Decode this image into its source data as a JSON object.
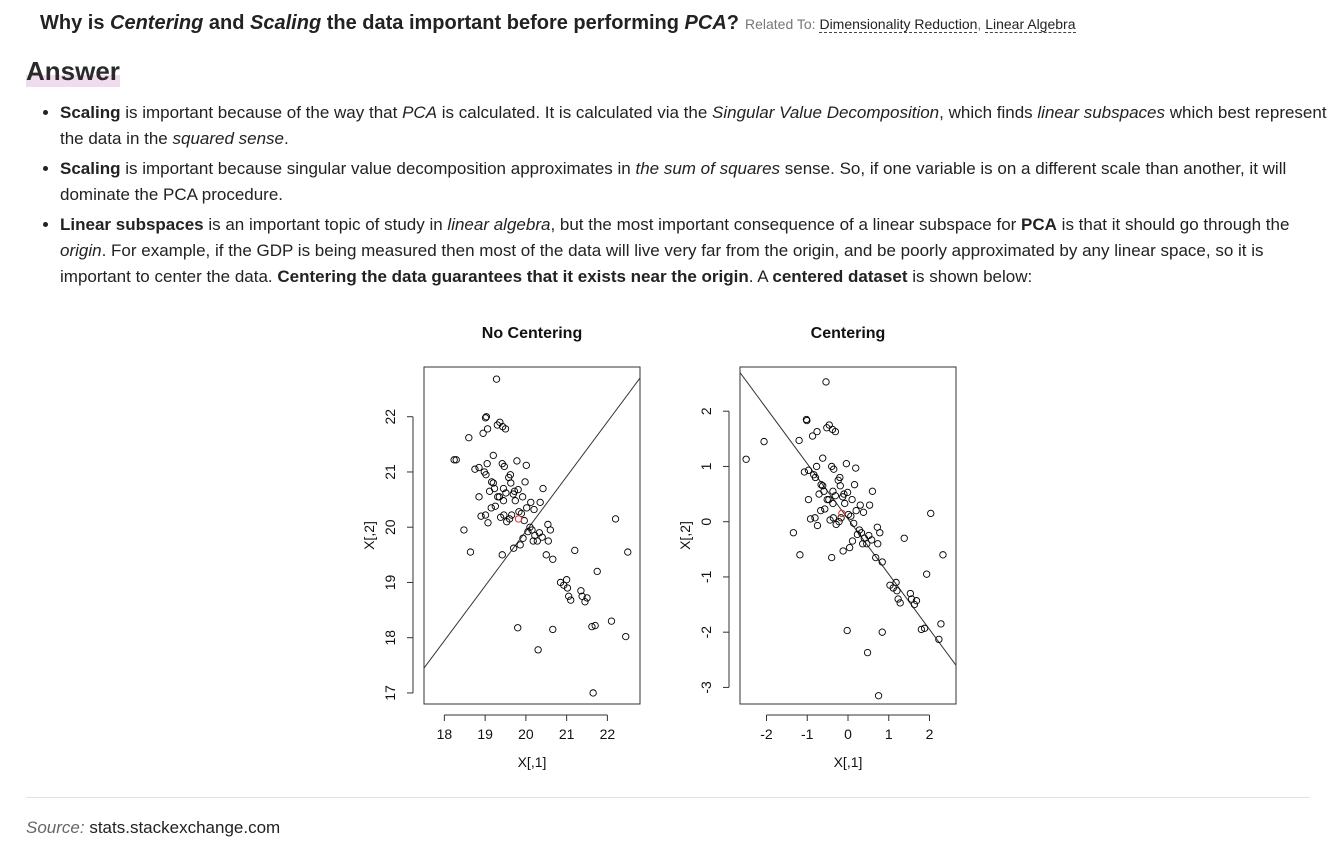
{
  "question": {
    "p1": "Why is ",
    "term1": "Centering",
    "p2": " and ",
    "term2": "Scaling",
    "p3": " the data important before performing ",
    "term3": "PCA",
    "p4": "?",
    "related_label": "Related To:",
    "related_links": [
      "Dimensionality Reduction",
      "Linear Algebra"
    ],
    "related_sep": ","
  },
  "answer": {
    "heading": "Answer",
    "bullets": [
      {
        "segments": [
          {
            "t": "Scaling",
            "s": "b"
          },
          {
            "t": " is important because of the way that ",
            "s": ""
          },
          {
            "t": "PCA",
            "s": "i"
          },
          {
            "t": " is calculated. It is calculated via the ",
            "s": ""
          },
          {
            "t": "Singular Value Decomposition",
            "s": "i"
          },
          {
            "t": ", which finds ",
            "s": ""
          },
          {
            "t": "linear subspaces",
            "s": "i"
          },
          {
            "t": " which best represent the data in the ",
            "s": ""
          },
          {
            "t": "squared sense",
            "s": "i"
          },
          {
            "t": ".",
            "s": ""
          }
        ]
      },
      {
        "segments": [
          {
            "t": "Scaling",
            "s": "b"
          },
          {
            "t": " is important because singular value decomposition approximates in ",
            "s": ""
          },
          {
            "t": "the sum of squares",
            "s": "i"
          },
          {
            "t": " sense. So, if one variable is on a different scale than another, it will dominate the PCA procedure.",
            "s": ""
          }
        ]
      },
      {
        "segments": [
          {
            "t": "Linear subspaces",
            "s": "b"
          },
          {
            "t": " is an important topic of study in ",
            "s": ""
          },
          {
            "t": "linear algebra",
            "s": "i"
          },
          {
            "t": ", but the most important consequence of a linear subspace for ",
            "s": ""
          },
          {
            "t": "PCA",
            "s": "b"
          },
          {
            "t": " is that it should go through the ",
            "s": ""
          },
          {
            "t": "origin",
            "s": "i"
          },
          {
            "t": ". For example, if the GDP is being measured then most of the data will live very far from the origin, and be poorly approximated by any linear space, so it is important to center the data. ",
            "s": ""
          },
          {
            "t": "Centering the data guarantees that it exists near the origin",
            "s": "b"
          },
          {
            "t": ". A ",
            "s": ""
          },
          {
            "t": "centered dataset",
            "s": "b"
          },
          {
            "t": " is shown below:",
            "s": ""
          }
        ]
      }
    ]
  },
  "chart_data": [
    {
      "type": "scatter",
      "title": "No Centering",
      "xlabel": "X[,1]",
      "ylabel": "X[,2]",
      "xlim": [
        17.5,
        22.8
      ],
      "ylim": [
        16.8,
        22.9
      ],
      "xticks": [
        18,
        19,
        20,
        21,
        22
      ],
      "yticks": [
        17,
        18,
        19,
        20,
        21,
        22
      ],
      "grid": false,
      "legend": "none",
      "point_color": "#000000",
      "mean_color": "#e03030",
      "line": {
        "x1": 17.5,
        "y1": 17.45,
        "x2": 22.8,
        "y2": 22.7
      },
      "mean_point": {
        "x": 19.82,
        "y": 20.15
      },
      "x": [
        19.28,
        18.24,
        18.29,
        19.01,
        19.03,
        19.3,
        19.36,
        19.43,
        19.5,
        18.95,
        18.6,
        19.06,
        19.2,
        19.47,
        19.42,
        19.62,
        19.78,
        20.01,
        18.75,
        18.85,
        18.98,
        19.02,
        19.05,
        19.11,
        19.16,
        19.23,
        19.35,
        19.45,
        19.51,
        19.58,
        19.63,
        19.69,
        19.72,
        19.81,
        19.92,
        19.98,
        20.12,
        20.2,
        20.35,
        20.42,
        18.9,
        19.01,
        19.07,
        19.15,
        19.25,
        19.31,
        19.38,
        19.46,
        19.53,
        19.6,
        19.65,
        19.74,
        19.83,
        19.89,
        19.96,
        20.02,
        20.1,
        20.15,
        20.22,
        20.28,
        20.33,
        20.4,
        20.54,
        20.6,
        19.45,
        19.2,
        18.85,
        18.48,
        18.64,
        19.42,
        19.7,
        19.86,
        19.93,
        20.05,
        20.18,
        20.5,
        20.55,
        20.66,
        20.85,
        20.93,
        21.0,
        21.02,
        21.05,
        21.1,
        21.35,
        21.38,
        21.45,
        21.5,
        21.62,
        21.7,
        21.75,
        21.2,
        22.1,
        22.45,
        22.5,
        21.65,
        20.66,
        20.3,
        19.8,
        22.2
      ],
      "y": [
        22.68,
        21.22,
        21.22,
        21.98,
        22.0,
        21.85,
        21.9,
        21.82,
        21.78,
        21.7,
        21.62,
        21.78,
        21.3,
        21.1,
        21.15,
        20.95,
        21.2,
        21.12,
        21.05,
        21.08,
        21.0,
        20.95,
        21.15,
        20.65,
        20.82,
        20.7,
        20.55,
        20.7,
        20.62,
        20.9,
        20.8,
        20.6,
        20.65,
        20.68,
        20.55,
        20.82,
        20.45,
        20.32,
        20.45,
        20.7,
        20.2,
        20.22,
        20.08,
        20.35,
        20.38,
        20.55,
        20.18,
        20.22,
        20.1,
        20.15,
        20.22,
        20.48,
        20.28,
        20.25,
        20.12,
        20.35,
        20.0,
        19.95,
        19.85,
        19.75,
        19.9,
        19.82,
        20.05,
        19.95,
        20.48,
        20.8,
        20.55,
        19.95,
        19.55,
        19.5,
        19.62,
        19.68,
        19.8,
        19.92,
        19.75,
        19.5,
        19.75,
        19.42,
        19.0,
        18.95,
        19.05,
        18.9,
        18.75,
        18.68,
        18.85,
        18.75,
        18.65,
        18.72,
        18.2,
        18.22,
        19.2,
        19.58,
        18.3,
        18.02,
        19.55,
        17.0,
        18.15,
        17.78,
        18.18,
        20.15
      ]
    },
    {
      "type": "scatter",
      "title": "Centering",
      "xlabel": "X[,1]",
      "ylabel": "X[,2]",
      "xlim": [
        -2.65,
        2.65
      ],
      "ylim": [
        -3.3,
        2.8
      ],
      "xticks": [
        -2,
        -1,
        0,
        1,
        2
      ],
      "yticks": [
        -3,
        -2,
        -1,
        0,
        1,
        2
      ],
      "grid": false,
      "legend": "none",
      "point_color": "#000000",
      "mean_color": "#e03030",
      "line": {
        "x1": -2.65,
        "y1": 2.7,
        "x2": 2.65,
        "y2": -2.6
      },
      "mean_point": {
        "x": -0.15,
        "y": 0.15
      },
      "x": [
        -0.54,
        -2.5,
        -2.06,
        -1.01,
        -1.02,
        -0.52,
        -0.46,
        -0.38,
        -0.31,
        -0.87,
        -1.2,
        -0.76,
        -0.62,
        -0.35,
        -0.4,
        -0.2,
        -0.04,
        0.19,
        -1.07,
        -0.97,
        -0.84,
        -0.8,
        -0.77,
        -0.71,
        -0.66,
        -0.59,
        -0.47,
        -0.37,
        -0.31,
        -0.24,
        -0.19,
        -0.13,
        -0.1,
        -0.01,
        0.1,
        0.16,
        0.3,
        0.38,
        0.53,
        0.6,
        -0.92,
        -0.81,
        -0.75,
        -0.67,
        -0.57,
        -0.51,
        -0.44,
        -0.36,
        -0.29,
        -0.22,
        -0.17,
        -0.08,
        0.01,
        0.07,
        0.14,
        0.2,
        0.28,
        0.33,
        0.4,
        0.46,
        0.51,
        0.58,
        0.72,
        0.78,
        -0.37,
        -0.62,
        -0.97,
        -1.34,
        -1.18,
        -0.4,
        -0.12,
        0.04,
        0.11,
        0.23,
        0.36,
        0.68,
        0.73,
        0.84,
        1.03,
        1.11,
        1.18,
        1.2,
        1.23,
        1.28,
        1.53,
        1.56,
        1.63,
        1.68,
        1.8,
        1.88,
        1.93,
        1.38,
        2.28,
        2.23,
        2.33,
        0.75,
        0.84,
        0.48,
        -0.02,
        2.03
      ],
      "y": [
        2.53,
        1.13,
        1.45,
        1.83,
        1.85,
        1.7,
        1.75,
        1.67,
        1.63,
        1.55,
        1.47,
        1.63,
        1.15,
        0.95,
        1.0,
        0.8,
        1.05,
        0.97,
        0.9,
        0.93,
        0.85,
        0.8,
        1.0,
        0.5,
        0.67,
        0.55,
        0.4,
        0.55,
        0.47,
        0.75,
        0.65,
        0.45,
        0.5,
        0.53,
        0.4,
        0.67,
        0.3,
        0.17,
        0.3,
        0.55,
        0.05,
        0.07,
        -0.07,
        0.2,
        0.23,
        0.4,
        0.03,
        0.07,
        -0.05,
        0.0,
        0.07,
        0.33,
        0.13,
        0.1,
        -0.03,
        0.2,
        -0.15,
        -0.2,
        -0.3,
        -0.4,
        -0.25,
        -0.33,
        -0.1,
        -0.2,
        0.33,
        0.65,
        0.4,
        -0.2,
        -0.6,
        -0.65,
        -0.53,
        -0.47,
        -0.35,
        -0.23,
        -0.4,
        -0.65,
        -0.4,
        -0.73,
        -1.15,
        -1.2,
        -1.1,
        -1.25,
        -1.4,
        -1.47,
        -1.3,
        -1.4,
        -1.5,
        -1.43,
        -1.95,
        -1.93,
        -0.95,
        -0.3,
        -1.85,
        -2.13,
        -0.6,
        -3.15,
        -2.0,
        -2.37,
        -1.97,
        0.15
      ]
    }
  ],
  "source": {
    "label": "Source:",
    "site": "stats.stackexchange.com"
  }
}
